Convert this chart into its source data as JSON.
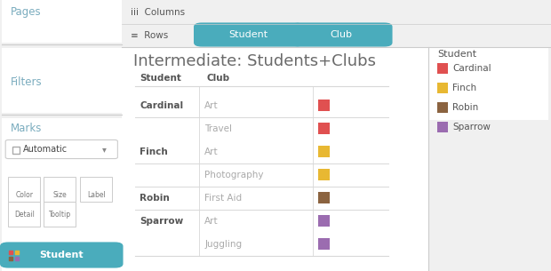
{
  "title": "Intermediate: Students+Clubs",
  "title_color": "#6a6a6a",
  "bg_color": "#f0f0f0",
  "white": "#ffffff",
  "teal": "#4aacbc",
  "students": [
    "Cardinal",
    "Finch",
    "Robin",
    "Sparrow"
  ],
  "student_colors": [
    "#e05050",
    "#e8b832",
    "#8b6340",
    "#9b6cb0"
  ],
  "rows": [
    {
      "student": "Cardinal",
      "club": "Art",
      "color": "#e05050",
      "first": true
    },
    {
      "student": "",
      "club": "Travel",
      "color": "#e05050",
      "first": false
    },
    {
      "student": "Finch",
      "club": "Art",
      "color": "#e8b832",
      "first": true
    },
    {
      "student": "",
      "club": "Photography",
      "color": "#e8b832",
      "first": false
    },
    {
      "student": "Robin",
      "club": "First Aid",
      "color": "#8b6340",
      "first": true
    },
    {
      "student": "Sparrow",
      "club": "Art",
      "color": "#9b6cb0",
      "first": true
    },
    {
      "student": "",
      "club": "Juggling",
      "color": "#9b6cb0",
      "first": false
    }
  ],
  "divider_after_rows": [
    1,
    3,
    4,
    5
  ],
  "left_section_labels": [
    "Pages",
    "Filters",
    "Marks"
  ],
  "left_section_label_color": "#7aacbe",
  "divider_color": "#cccccc",
  "table_line_color": "#d8d8d8",
  "text_dark": "#555555",
  "text_medium": "#777777",
  "text_light": "#aaaaaa"
}
